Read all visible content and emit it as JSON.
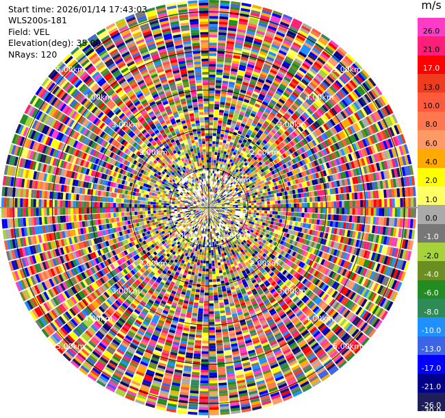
{
  "header": {
    "start_time": "Start time: 2026/01/14 17:43:03",
    "site": "WLS200s-181",
    "field": "Field: VEL",
    "elevation": "Elevation(deg): 35.00",
    "nrays": "NRays: 120"
  },
  "colorbar": {
    "unit": "m/s",
    "ticks": [
      "26.0",
      "21.0",
      "17.0",
      "13.0",
      "10.0",
      "8.0",
      "6.0",
      "4.0",
      "2.0",
      "1.0",
      "0.0",
      "-1.0",
      "-2.0",
      "-4.0",
      "-6.0",
      "-8.0",
      "-10.0",
      "-13.0",
      "-17.0",
      "-21.0",
      "-26.0",
      "-30.0"
    ],
    "colors": [
      "#ff3cc8",
      "#ff1e78",
      "#ff0000",
      "#f03c1e",
      "#ff5a3c",
      "#ff7850",
      "#ff9966",
      "#ffaa00",
      "#ffff00",
      "#ffff66",
      "#aaaaaa",
      "#777777",
      "#a6d23c",
      "#6b8e23",
      "#228b22",
      "#2e8b57",
      "#1e90ff",
      "#3c64e6",
      "#0000ff",
      "#00008b",
      "#1e1e5a"
    ]
  },
  "chart_data": {
    "type": "heatmap",
    "field": "VEL",
    "units": "m/s",
    "nrays": 120,
    "elevation_deg": 35.0,
    "range_ring_labels": [
      "1.00km",
      "2.00km",
      "3.00km",
      "4.00km",
      "5.00km"
    ],
    "range_rings_km": [
      1,
      2,
      3,
      4,
      5
    ],
    "max_range_km": 5.3,
    "color_levels": [
      26.0,
      21.0,
      17.0,
      13.0,
      10.0,
      8.0,
      6.0,
      4.0,
      2.0,
      1.0,
      0.0,
      -1.0,
      -2.0,
      -4.0,
      -6.0,
      -8.0,
      -10.0,
      -13.0,
      -17.0,
      -21.0,
      -26.0,
      -30.0
    ]
  }
}
